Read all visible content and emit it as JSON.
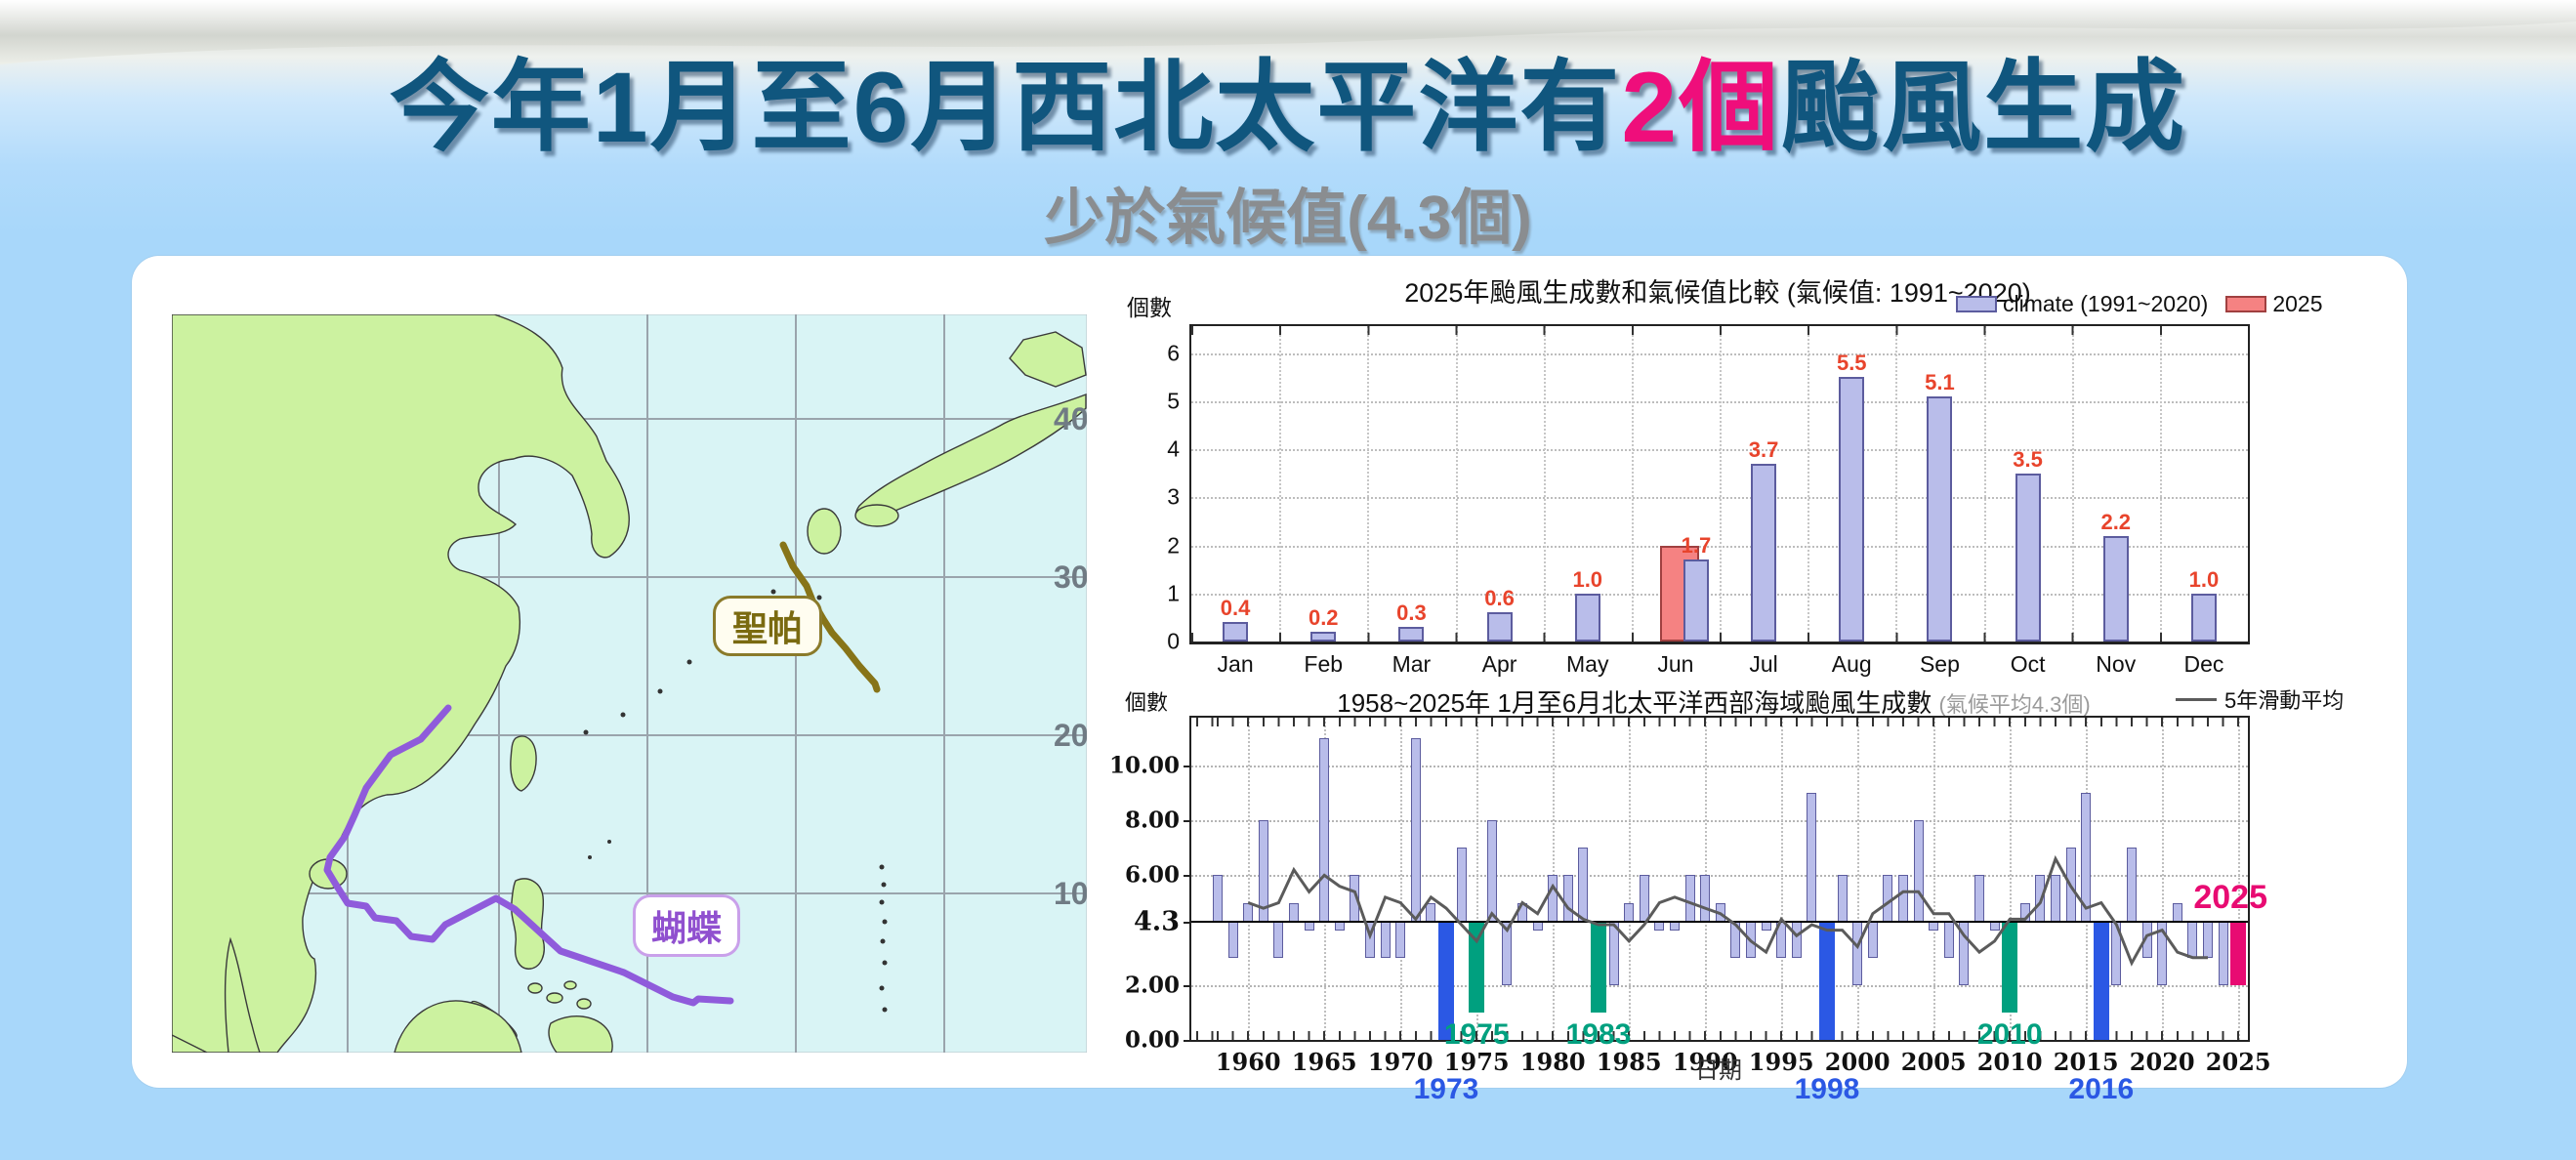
{
  "header": {
    "title_part1": "今年1月至6月西北太平洋有",
    "title_highlight": "2個",
    "title_part2": "颱風生成",
    "subtitle": "少於氣候值(4.3個)",
    "title_color": "#10567e",
    "highlight_color": "#ef0e7b"
  },
  "map_labels": {
    "lat": [
      "40",
      "30",
      "20",
      "10"
    ],
    "tracks": [
      {
        "name": "聖帕",
        "color": "#877418"
      },
      {
        "name": "蝴蝶",
        "color": "#8f5bdb"
      }
    ]
  },
  "chart_data": [
    {
      "id": "monthly",
      "type": "bar",
      "title": "2025年颱風生成數和氣候值比較 (氣候值: 1991~2020)",
      "ylabel": "個數",
      "categories": [
        "Jan",
        "Feb",
        "Mar",
        "Apr",
        "May",
        "Jun",
        "Jul",
        "Aug",
        "Sep",
        "Oct",
        "Nov",
        "Dec"
      ],
      "series": [
        {
          "name": "climate (1991~2020)",
          "color": "#b9bdea",
          "border": "#5c5c9e",
          "values": [
            0.4,
            0.2,
            0.3,
            0.6,
            1.0,
            1.7,
            3.7,
            5.5,
            5.1,
            3.5,
            2.2,
            1.0
          ]
        },
        {
          "name": "2025",
          "color": "#f58282",
          "border": "#a04040",
          "values": [
            null,
            null,
            null,
            null,
            null,
            2,
            null,
            null,
            null,
            null,
            null,
            null
          ]
        }
      ],
      "value_label_color": "#e8442c",
      "ylim": [
        0,
        6.56
      ],
      "yticks": [
        0,
        1,
        2,
        3,
        4,
        5,
        6
      ],
      "grid": true,
      "legend_position": "top-right"
    },
    {
      "id": "annual",
      "type": "bar",
      "title": "1958~2025年 1月至6月北太平洋西部海域颱風生成數",
      "title_note": "(氣候平均4.3個)",
      "legend": "5年滑動平均",
      "ylabel": "個數",
      "xlabel": "日期",
      "baseline": 4.3,
      "x_start": 1958,
      "x": [
        1958,
        1959,
        1960,
        1961,
        1962,
        1963,
        1964,
        1965,
        1966,
        1967,
        1968,
        1969,
        1970,
        1971,
        1972,
        1973,
        1974,
        1975,
        1976,
        1977,
        1978,
        1979,
        1980,
        1981,
        1982,
        1983,
        1984,
        1985,
        1986,
        1987,
        1988,
        1989,
        1990,
        1991,
        1992,
        1993,
        1994,
        1995,
        1996,
        1997,
        1998,
        1999,
        2000,
        2001,
        2002,
        2003,
        2004,
        2005,
        2006,
        2007,
        2008,
        2009,
        2010,
        2011,
        2012,
        2013,
        2014,
        2015,
        2016,
        2017,
        2018,
        2019,
        2020,
        2021,
        2022,
        2023,
        2024,
        2025
      ],
      "values": [
        6,
        3,
        5,
        8,
        3,
        5,
        4,
        11,
        4,
        6,
        3,
        3,
        3,
        11,
        5,
        0,
        7,
        1,
        8,
        2,
        5,
        4,
        6,
        6,
        7,
        1,
        2,
        5,
        6,
        4,
        4,
        6,
        6,
        5,
        3,
        3,
        4,
        3,
        3,
        9,
        0,
        6,
        2,
        3,
        6,
        6,
        8,
        4,
        3,
        2,
        6,
        4,
        1,
        5,
        6,
        6,
        7,
        9,
        0,
        2,
        7,
        3,
        2,
        5,
        3,
        3,
        2,
        2
      ],
      "bar_color": "#b9bdea",
      "bar_border": "#5c5c9e",
      "moving_average_window": 5,
      "moving_average_color": "#5b5b5b",
      "highlights": [
        {
          "year": 1973,
          "color": "#2b58e4",
          "label_position": "below-axis"
        },
        {
          "year": 1975,
          "color": "#00a07f",
          "label_position": "above-axis"
        },
        {
          "year": 1983,
          "color": "#00a07f",
          "label_position": "above-axis"
        },
        {
          "year": 1998,
          "color": "#2b58e4",
          "label_position": "below-axis"
        },
        {
          "year": 2010,
          "color": "#00a07f",
          "label_position": "above-axis"
        },
        {
          "year": 2016,
          "color": "#2b58e4",
          "label_position": "below-axis"
        },
        {
          "year": 2025,
          "color": "#e80b72",
          "label_position": "above-line-right"
        }
      ],
      "ylim": [
        0,
        11.74
      ],
      "yticks": [
        "0.00",
        "2.00",
        "4.3",
        "6.00",
        "8.00",
        "10.00"
      ],
      "xticks": [
        1960,
        1965,
        1970,
        1975,
        1980,
        1985,
        1990,
        1995,
        2000,
        2005,
        2010,
        2015,
        2020,
        2025
      ],
      "grid": true,
      "legend_position": "top-right"
    }
  ]
}
